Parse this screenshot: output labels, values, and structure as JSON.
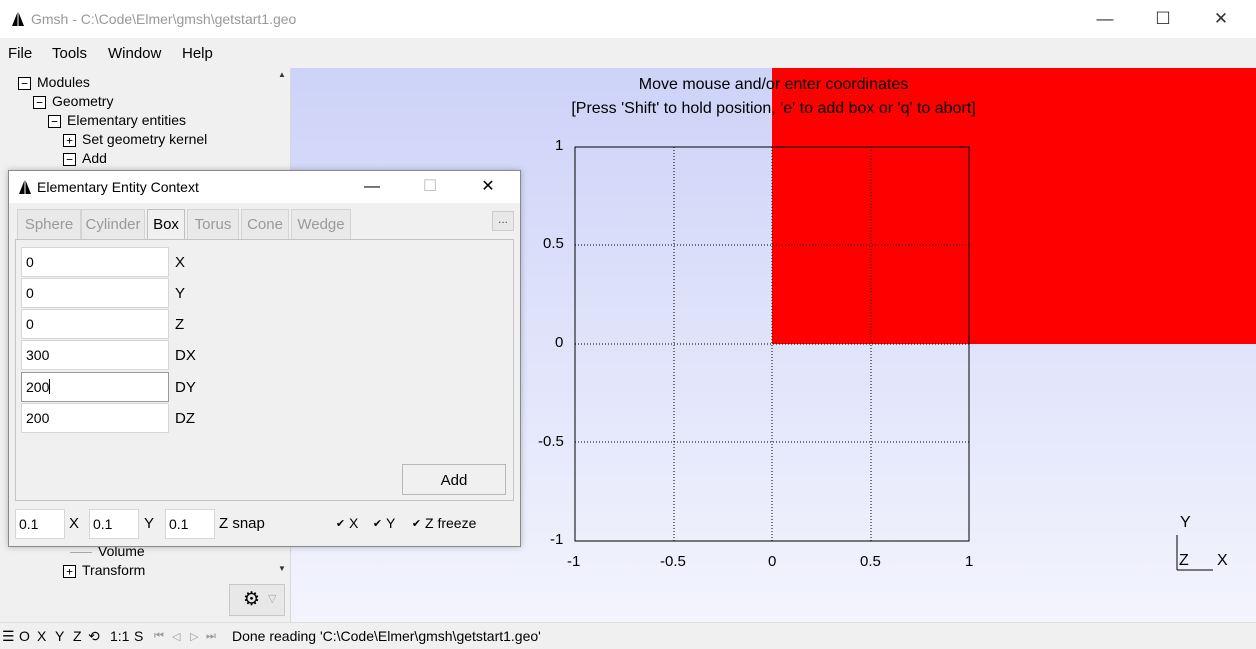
{
  "window": {
    "title": "Gmsh - C:\\Code\\Elmer\\gmsh\\getstart1.geo",
    "minimize": "—",
    "maximize": "☐",
    "close": "✕"
  },
  "menu": {
    "file": "File",
    "tools": "Tools",
    "window": "Window",
    "help": "Help"
  },
  "tree": {
    "items": [
      {
        "label": "Modules",
        "toggle": "−"
      },
      {
        "label": "Geometry",
        "toggle": "−"
      },
      {
        "label": "Elementary entities",
        "toggle": "−"
      },
      {
        "label": "Set geometry kernel",
        "toggle": "+"
      },
      {
        "label": "Add",
        "toggle": "−"
      },
      {
        "label": "Volume",
        "toggle": ""
      },
      {
        "label": "Transform",
        "toggle": "+"
      }
    ]
  },
  "graphics": {
    "message_line1": "Move mouse and/or enter coordinates",
    "message_line2": "[Press 'Shift' to hold position, 'e' to add box or 'q' to abort]",
    "axis_ticks_x": [
      "-1",
      "-0.5",
      "0",
      "0.5",
      "1"
    ],
    "axis_ticks_y": [
      "1",
      "0.5",
      "0",
      "-0.5",
      "-1"
    ],
    "triad": {
      "y": "Y",
      "z": "Z",
      "x": "X"
    },
    "box_color": "#ff0000"
  },
  "dialog": {
    "title": "Elementary Entity Context",
    "more": "...",
    "tabs": [
      {
        "label": "Sphere",
        "active": false
      },
      {
        "label": "Cylinder",
        "active": false
      },
      {
        "label": "Box",
        "active": true
      },
      {
        "label": "Torus",
        "active": false
      },
      {
        "label": "Cone",
        "active": false
      },
      {
        "label": "Wedge",
        "active": false
      }
    ],
    "fields": [
      {
        "value": "0",
        "label": "X"
      },
      {
        "value": "0",
        "label": "Y"
      },
      {
        "value": "0",
        "label": "Z"
      },
      {
        "value": "300",
        "label": "DX"
      },
      {
        "value": "200",
        "label": "DY"
      },
      {
        "value": "200",
        "label": "DZ"
      }
    ],
    "add_button": "Add",
    "snap": {
      "x_value": "0.1",
      "x_label": "X",
      "y_value": "0.1",
      "y_label": "Y",
      "z_value": "0.1",
      "z_label": "Z snap"
    },
    "freeze": [
      {
        "label": "X",
        "checked": true
      },
      {
        "label": "Y",
        "checked": true
      },
      {
        "label": "Z freeze",
        "checked": true
      }
    ]
  },
  "statusbar": {
    "menu_icon": "☰",
    "buttons": [
      "O",
      "X",
      "Y",
      "Z"
    ],
    "rotate_icon": "⟲",
    "scale": "1:1",
    "s": "S",
    "nav": [
      "⏮",
      "◁",
      "▷",
      "⏭"
    ],
    "message": "Done reading 'C:\\Code\\Elmer\\gmsh\\getstart1.geo'"
  }
}
